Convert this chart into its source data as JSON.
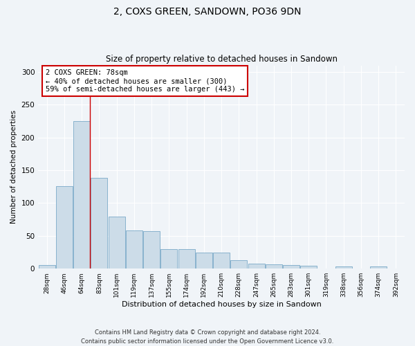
{
  "title": "2, COXS GREEN, SANDOWN, PO36 9DN",
  "subtitle": "Size of property relative to detached houses in Sandown",
  "xlabel": "Distribution of detached houses by size in Sandown",
  "ylabel": "Number of detached properties",
  "categories": [
    "28sqm",
    "46sqm",
    "64sqm",
    "83sqm",
    "101sqm",
    "119sqm",
    "137sqm",
    "155sqm",
    "174sqm",
    "192sqm",
    "210sqm",
    "228sqm",
    "247sqm",
    "265sqm",
    "283sqm",
    "301sqm",
    "319sqm",
    "338sqm",
    "356sqm",
    "374sqm",
    "392sqm"
  ],
  "bar_heights": [
    6,
    126,
    225,
    139,
    79,
    58,
    57,
    30,
    30,
    25,
    25,
    13,
    8,
    7,
    6,
    4,
    0,
    3,
    0,
    3,
    0
  ],
  "bar_color": "#ccdce8",
  "bar_edge_color": "#7aaac8",
  "red_line_x": 2.48,
  "annotation_text": "2 COXS GREEN: 78sqm\n← 40% of detached houses are smaller (300)\n59% of semi-detached houses are larger (443) →",
  "annotation_box_color": "#ffffff",
  "annotation_box_edge": "#cc0000",
  "footer": "Contains HM Land Registry data © Crown copyright and database right 2024.\nContains public sector information licensed under the Open Government Licence v3.0.",
  "ylim": [
    0,
    310
  ],
  "yticks": [
    0,
    50,
    100,
    150,
    200,
    250,
    300
  ],
  "bg_color": "#f0f4f8",
  "plot_bg_color": "#f0f4f8",
  "grid_color": "#ffffff",
  "title_fontsize": 10,
  "subtitle_fontsize": 8.5
}
